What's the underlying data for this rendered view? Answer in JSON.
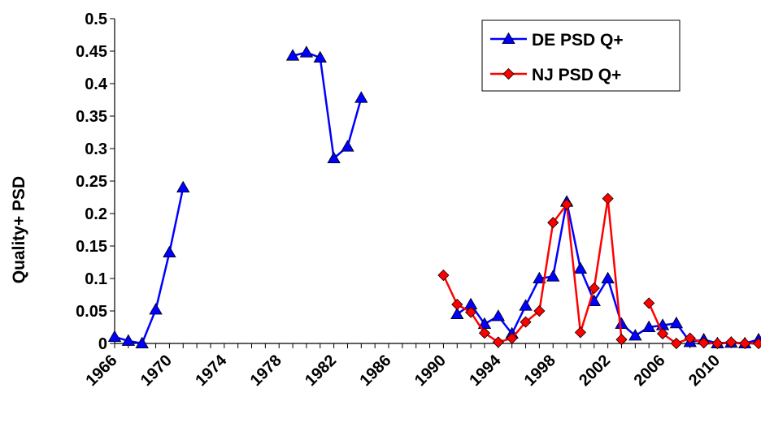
{
  "chart_data": {
    "type": "line",
    "title": "",
    "xlabel": "",
    "ylabel": "Quality+ PSD",
    "xlim": [
      1966,
      2013
    ],
    "ylim": [
      0,
      0.5
    ],
    "y_ticks": [
      "0",
      "0.05",
      "0.1",
      "0.15",
      "0.2",
      "0.25",
      "0.3",
      "0.35",
      "0.4",
      "0.45",
      "0.5"
    ],
    "x_ticks": [
      "1966",
      "1970",
      "1974",
      "1978",
      "1982",
      "1986",
      "1990",
      "1994",
      "1998",
      "2002",
      "2006",
      "2010"
    ],
    "grid": false,
    "legend_position": "top-right",
    "series": [
      {
        "name": "DE PSD Q+",
        "color": "#0000ff",
        "marker": "triangle",
        "segments": [
          [
            [
              1966,
              0.01
            ],
            [
              1967,
              0.004
            ],
            [
              1968,
              0.0
            ],
            [
              1969,
              0.052
            ],
            [
              1970,
              0.14
            ],
            [
              1971,
              0.24
            ]
          ],
          [
            [
              1979,
              0.443
            ],
            [
              1980,
              0.448
            ],
            [
              1981,
              0.44
            ],
            [
              1982,
              0.285
            ],
            [
              1983,
              0.303
            ],
            [
              1984,
              0.378
            ]
          ],
          [
            [
              1991,
              0.045
            ],
            [
              1992,
              0.06
            ],
            [
              1993,
              0.03
            ],
            [
              1994,
              0.042
            ],
            [
              1995,
              0.015
            ],
            [
              1996,
              0.058
            ],
            [
              1997,
              0.1
            ],
            [
              1998,
              0.103
            ],
            [
              1999,
              0.218
            ],
            [
              2000,
              0.115
            ],
            [
              2001,
              0.065
            ],
            [
              2002,
              0.1
            ],
            [
              2003,
              0.03
            ],
            [
              2004,
              0.012
            ],
            [
              2005,
              0.025
            ],
            [
              2006,
              0.028
            ],
            [
              2007,
              0.031
            ],
            [
              2008,
              0.002
            ],
            [
              2009,
              0.006
            ],
            [
              2010,
              0.0
            ],
            [
              2011,
              0.001
            ],
            [
              2012,
              0.0
            ],
            [
              2013,
              0.006
            ]
          ]
        ]
      },
      {
        "name": "NJ PSD Q+",
        "color": "#ff0000",
        "marker": "diamond",
        "segments": [
          [
            [
              1990,
              0.105
            ],
            [
              1991,
              0.06
            ],
            [
              1992,
              0.048
            ],
            [
              1993,
              0.016
            ],
            [
              1994,
              0.002
            ],
            [
              1995,
              0.008
            ],
            [
              1996,
              0.033
            ],
            [
              1997,
              0.05
            ],
            [
              1998,
              0.186
            ],
            [
              1999,
              0.214
            ],
            [
              2000,
              0.017
            ],
            [
              2001,
              0.085
            ],
            [
              2002,
              0.223
            ],
            [
              2003,
              0.006
            ]
          ],
          [
            [
              2005,
              0.062
            ],
            [
              2006,
              0.015
            ],
            [
              2007,
              0.0
            ],
            [
              2008,
              0.008
            ],
            [
              2009,
              0.001
            ],
            [
              2010,
              0.0
            ],
            [
              2011,
              0.002
            ],
            [
              2012,
              0.0
            ],
            [
              2013,
              0.0
            ]
          ]
        ]
      }
    ]
  }
}
